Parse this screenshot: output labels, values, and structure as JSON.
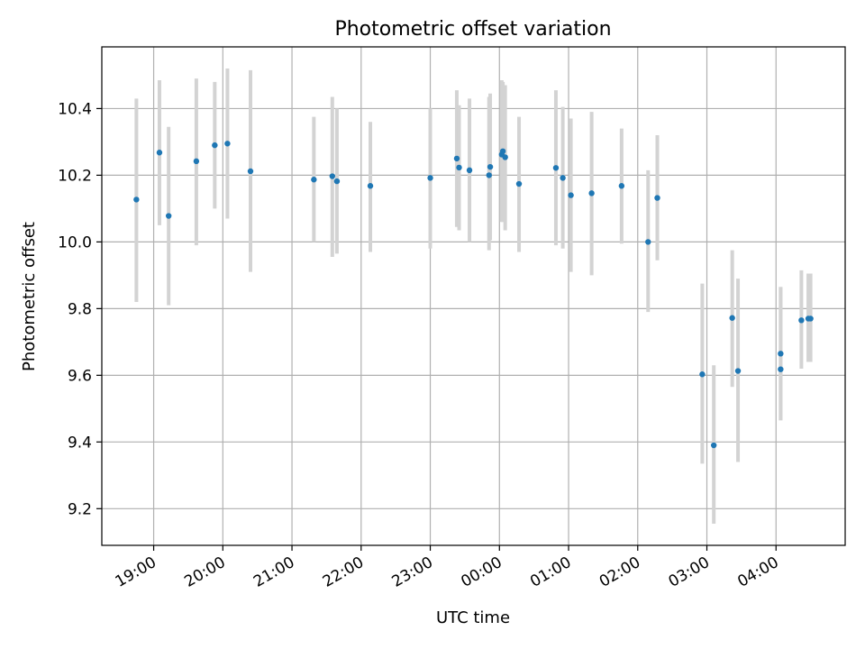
{
  "chart_data": {
    "type": "scatter",
    "title": "Photometric offset variation",
    "xlabel": "UTC time",
    "ylabel": "Photometric offset",
    "x_ticks": [
      "19:00",
      "20:00",
      "21:00",
      "22:00",
      "23:00",
      "00:00",
      "01:00",
      "02:00",
      "03:00",
      "04:00"
    ],
    "y_ticks": [
      "9.2",
      "9.4",
      "9.6",
      "9.8",
      "10.0",
      "10.2",
      "10.4"
    ],
    "xlim": [
      "18:15",
      "05:00"
    ],
    "ylim": [
      9.09,
      10.585
    ],
    "grid": true,
    "colors": {
      "point": "#1f77b4",
      "errorbar": "#d3d3d3"
    },
    "series": [
      {
        "points": [
          {
            "x": "18:45",
            "y": 10.127,
            "ylo": 9.82,
            "yhi": 10.43
          },
          {
            "x": "19:05",
            "y": 10.268,
            "ylo": 10.05,
            "yhi": 10.485
          },
          {
            "x": "19:13",
            "y": 10.078,
            "ylo": 9.81,
            "yhi": 10.345
          },
          {
            "x": "19:37",
            "y": 10.242,
            "ylo": 9.99,
            "yhi": 10.49
          },
          {
            "x": "19:53",
            "y": 10.29,
            "ylo": 10.1,
            "yhi": 10.48
          },
          {
            "x": "20:04",
            "y": 10.295,
            "ylo": 10.07,
            "yhi": 10.52
          },
          {
            "x": "20:24",
            "y": 10.212,
            "ylo": 9.91,
            "yhi": 10.515
          },
          {
            "x": "21:19",
            "y": 10.187,
            "ylo": 10.0,
            "yhi": 10.375
          },
          {
            "x": "21:35",
            "y": 10.197,
            "ylo": 9.955,
            "yhi": 10.435
          },
          {
            "x": "21:39",
            "y": 10.182,
            "ylo": 9.965,
            "yhi": 10.4
          },
          {
            "x": "22:08",
            "y": 10.168,
            "ylo": 9.97,
            "yhi": 10.36
          },
          {
            "x": "23:00",
            "y": 10.192,
            "ylo": 9.98,
            "yhi": 10.4
          },
          {
            "x": "23:23",
            "y": 10.25,
            "ylo": 10.045,
            "yhi": 10.455
          },
          {
            "x": "23:25",
            "y": 10.223,
            "ylo": 10.035,
            "yhi": 10.41
          },
          {
            "x": "23:34",
            "y": 10.215,
            "ylo": 10.0,
            "yhi": 10.43
          },
          {
            "x": "23:51",
            "y": 10.2,
            "ylo": 9.975,
            "yhi": 10.435
          },
          {
            "x": "23:52",
            "y": 10.225,
            "ylo": 10.005,
            "yhi": 10.445
          },
          {
            "x": "00:02",
            "y": 10.262,
            "ylo": 10.06,
            "yhi": 10.485
          },
          {
            "x": "00:03",
            "y": 10.272,
            "ylo": 10.06,
            "yhi": 10.48
          },
          {
            "x": "00:05",
            "y": 10.254,
            "ylo": 10.035,
            "yhi": 10.47
          },
          {
            "x": "00:17",
            "y": 10.174,
            "ylo": 9.97,
            "yhi": 10.375
          },
          {
            "x": "00:49",
            "y": 10.222,
            "ylo": 9.99,
            "yhi": 10.455
          },
          {
            "x": "00:55",
            "y": 10.192,
            "ylo": 9.98,
            "yhi": 10.405
          },
          {
            "x": "01:02",
            "y": 10.14,
            "ylo": 9.91,
            "yhi": 10.37
          },
          {
            "x": "01:20",
            "y": 10.146,
            "ylo": 9.9,
            "yhi": 10.39
          },
          {
            "x": "01:46",
            "y": 10.168,
            "ylo": 9.995,
            "yhi": 10.34
          },
          {
            "x": "02:09",
            "y": 10.0,
            "ylo": 9.79,
            "yhi": 10.215
          },
          {
            "x": "02:17",
            "y": 10.132,
            "ylo": 9.945,
            "yhi": 10.32
          },
          {
            "x": "02:56",
            "y": 9.603,
            "ylo": 9.335,
            "yhi": 9.875
          },
          {
            "x": "03:06",
            "y": 9.39,
            "ylo": 9.155,
            "yhi": 9.63
          },
          {
            "x": "03:22",
            "y": 9.772,
            "ylo": 9.565,
            "yhi": 9.975
          },
          {
            "x": "03:27",
            "y": 9.613,
            "ylo": 9.34,
            "yhi": 9.89
          },
          {
            "x": "04:04",
            "y": 9.665,
            "ylo": 9.465,
            "yhi": 9.865
          },
          {
            "x": "04:04",
            "y": 9.618,
            "ylo": 9.465,
            "yhi": 9.865
          },
          {
            "x": "04:22",
            "y": 9.765,
            "ylo": 9.62,
            "yhi": 9.915
          },
          {
            "x": "04:28",
            "y": 9.77,
            "ylo": 9.64,
            "yhi": 9.905
          },
          {
            "x": "04:30",
            "y": 9.77,
            "ylo": 9.64,
            "yhi": 9.905
          }
        ]
      }
    ]
  }
}
